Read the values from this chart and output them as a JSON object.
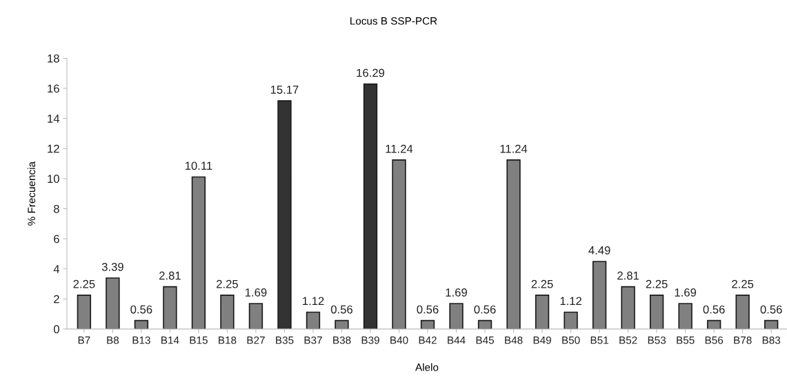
{
  "chart_data": {
    "type": "bar",
    "title": "Locus B SSP-PCR",
    "xlabel": "Alelo",
    "ylabel": "% Frecuencia",
    "categories": [
      "B7",
      "B8",
      "B13",
      "B14",
      "B15",
      "B18",
      "B27",
      "B35",
      "B37",
      "B38",
      "B39",
      "B40",
      "B42",
      "B44",
      "B45",
      "B48",
      "B49",
      "B50",
      "B51",
      "B52",
      "B53",
      "B55",
      "B56",
      "B78",
      "B83"
    ],
    "values": [
      2.25,
      3.39,
      0.56,
      2.81,
      10.11,
      2.25,
      1.69,
      15.17,
      1.12,
      0.56,
      16.29,
      11.24,
      0.56,
      1.69,
      0.56,
      11.24,
      2.25,
      1.12,
      4.49,
      2.81,
      2.25,
      1.69,
      0.56,
      2.25,
      0.56
    ],
    "colors": [
      "#808080",
      "#808080",
      "#808080",
      "#808080",
      "#808080",
      "#808080",
      "#808080",
      "#333333",
      "#808080",
      "#808080",
      "#333333",
      "#808080",
      "#808080",
      "#808080",
      "#808080",
      "#808080",
      "#808080",
      "#808080",
      "#808080",
      "#808080",
      "#808080",
      "#808080",
      "#808080",
      "#808080",
      "#808080"
    ],
    "ylim": [
      0,
      18
    ],
    "yticks": [
      0,
      2,
      4,
      6,
      8,
      10,
      12,
      14,
      16,
      18
    ],
    "data_labels": true,
    "grid": false,
    "legend": false
  }
}
